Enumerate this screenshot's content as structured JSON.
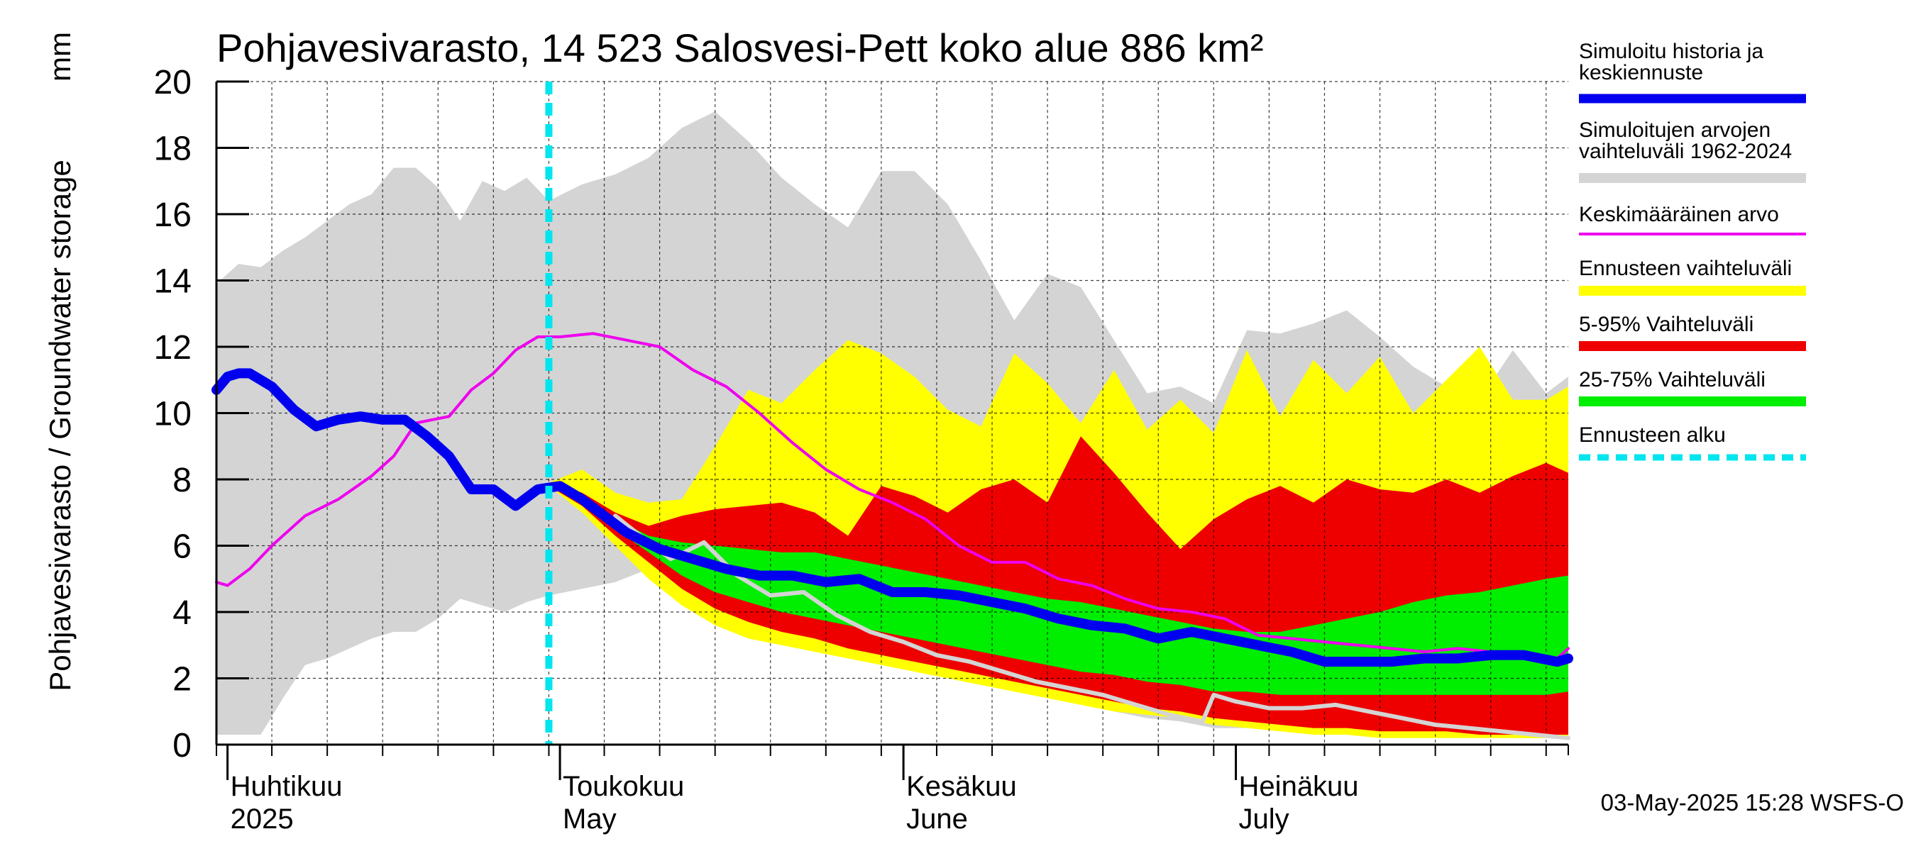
{
  "chart_data": {
    "type": "area",
    "title": "Pohjavesivarasto, 14 523 Salosvesi-Pett koko alue 886 km²",
    "ylabel": "Pohjavesivarasto / Groundwater storage",
    "yunit": "mm",
    "ylim": [
      0,
      20
    ],
    "yticks": [
      "0",
      "2",
      "4",
      "6",
      "8",
      "10",
      "12",
      "14",
      "16",
      "18",
      "20"
    ],
    "xlim": [
      "2025-03-31",
      "2025-07-31"
    ],
    "grid": true,
    "legend_position": "right",
    "month_labels": [
      {
        "date": "2025-04-01",
        "line1": "Huhtikuu",
        "line2": "2025"
      },
      {
        "date": "2025-05-01",
        "line1": "Toukokuu",
        "line2": "May"
      },
      {
        "date": "2025-06-01",
        "line1": "Kesäkuu",
        "line2": "June"
      },
      {
        "date": "2025-07-01",
        "line1": "Heinäkuu",
        "line2": "July"
      }
    ],
    "forecast_start": "2025-04-30",
    "timestamp": "03-May-2025 15:28 WSFS-O",
    "legend": [
      {
        "label": "Simuloitu historia ja keskiennuste",
        "color": "#0000ee",
        "style": "thick"
      },
      {
        "label": "Simuloitujen arvojen vaihteluväli 1962-2024",
        "color": "#d4d4d4",
        "style": "band"
      },
      {
        "label": "Keskimääräinen arvo",
        "color": "#ee00ee",
        "style": "thin"
      },
      {
        "label": "Ennusteen vaihteluväli",
        "color": "#ffff00",
        "style": "band"
      },
      {
        "label": "5-95% Vaihteluväli",
        "color": "#ee0000",
        "style": "band"
      },
      {
        "label": "25-75% Vaihteluväli",
        "color": "#00ee00",
        "style": "band"
      },
      {
        "label": "Ennusteen alku",
        "color": "#00e5ee",
        "style": "dashed"
      }
    ],
    "bands": {
      "history_range": {
        "color": "#d4d4d4",
        "x": [
          "2025-03-31",
          "2025-04-02",
          "2025-04-04",
          "2025-04-06",
          "2025-04-08",
          "2025-04-10",
          "2025-04-12",
          "2025-04-14",
          "2025-04-16",
          "2025-04-18",
          "2025-04-20",
          "2025-04-22",
          "2025-04-24",
          "2025-04-26",
          "2025-04-28",
          "2025-04-30",
          "2025-05-03",
          "2025-05-06",
          "2025-05-09",
          "2025-05-12",
          "2025-05-15",
          "2025-05-18",
          "2025-05-21",
          "2025-05-24",
          "2025-05-27",
          "2025-05-30",
          "2025-06-02",
          "2025-06-05",
          "2025-06-08",
          "2025-06-11",
          "2025-06-14",
          "2025-06-17",
          "2025-06-20",
          "2025-06-23",
          "2025-06-26",
          "2025-06-29",
          "2025-07-02",
          "2025-07-05",
          "2025-07-08",
          "2025-07-11",
          "2025-07-14",
          "2025-07-17",
          "2025-07-20",
          "2025-07-23",
          "2025-07-26",
          "2025-07-29",
          "2025-07-31"
        ],
        "upper": [
          13.9,
          14.5,
          14.4,
          14.9,
          15.3,
          15.8,
          16.3,
          16.6,
          17.4,
          17.4,
          16.8,
          15.8,
          17.0,
          16.7,
          17.1,
          16.4,
          16.9,
          17.2,
          17.7,
          18.6,
          19.1,
          18.2,
          17.1,
          16.3,
          15.6,
          17.3,
          17.3,
          16.3,
          14.6,
          12.8,
          14.2,
          13.8,
          12.2,
          10.6,
          10.8,
          10.3,
          12.5,
          12.4,
          12.7,
          13.1,
          12.3,
          11.4,
          10.8,
          10.4,
          11.9,
          10.6,
          11.1
        ],
        "lower": [
          0.3,
          0.3,
          0.3,
          1.4,
          2.4,
          2.6,
          2.9,
          3.2,
          3.4,
          3.4,
          3.8,
          4.4,
          4.2,
          4.0,
          4.3,
          4.5,
          4.7,
          4.9,
          5.3,
          5.8,
          5.2,
          4.7,
          4.1,
          3.5,
          3.1,
          2.8,
          2.6,
          2.4,
          2.1,
          1.9,
          1.6,
          1.3,
          1.0,
          0.8,
          0.7,
          0.5,
          0.5,
          0.5,
          0.4,
          0.4,
          0.3,
          0.3,
          0.3,
          0.3,
          0.2,
          0.2,
          0.2
        ]
      },
      "forecast_range": {
        "color": "#ffff00",
        "x": [
          "2025-04-30",
          "2025-05-03",
          "2025-05-06",
          "2025-05-09",
          "2025-05-12",
          "2025-05-15",
          "2025-05-18",
          "2025-05-21",
          "2025-05-24",
          "2025-05-27",
          "2025-05-30",
          "2025-06-02",
          "2025-06-05",
          "2025-06-08",
          "2025-06-11",
          "2025-06-14",
          "2025-06-17",
          "2025-06-20",
          "2025-06-23",
          "2025-06-26",
          "2025-06-29",
          "2025-07-02",
          "2025-07-05",
          "2025-07-08",
          "2025-07-11",
          "2025-07-14",
          "2025-07-17",
          "2025-07-20",
          "2025-07-23",
          "2025-07-26",
          "2025-07-29",
          "2025-07-31"
        ],
        "upper": [
          7.9,
          8.3,
          7.6,
          7.3,
          7.4,
          9.0,
          10.7,
          10.3,
          11.3,
          12.2,
          11.8,
          11.1,
          10.1,
          9.6,
          11.8,
          10.9,
          9.7,
          11.3,
          9.5,
          10.4,
          9.4,
          11.9,
          9.9,
          11.6,
          10.6,
          11.7,
          10.0,
          11.0,
          12.0,
          10.4,
          10.4,
          10.8
        ],
        "lower": [
          7.8,
          7.0,
          6.0,
          5.0,
          4.2,
          3.6,
          3.2,
          3.0,
          2.8,
          2.6,
          2.4,
          2.2,
          2.0,
          1.8,
          1.6,
          1.4,
          1.2,
          1.0,
          0.9,
          0.8,
          0.6,
          0.5,
          0.4,
          0.3,
          0.3,
          0.2,
          0.2,
          0.2,
          0.2,
          0.2,
          0.2,
          0.2
        ]
      },
      "p5_95": {
        "color": "#ee0000",
        "x": [
          "2025-04-30",
          "2025-05-03",
          "2025-05-06",
          "2025-05-09",
          "2025-05-12",
          "2025-05-15",
          "2025-05-18",
          "2025-05-21",
          "2025-05-24",
          "2025-05-27",
          "2025-05-30",
          "2025-06-02",
          "2025-06-05",
          "2025-06-08",
          "2025-06-11",
          "2025-06-14",
          "2025-06-17",
          "2025-06-20",
          "2025-06-23",
          "2025-06-26",
          "2025-06-29",
          "2025-07-02",
          "2025-07-05",
          "2025-07-08",
          "2025-07-11",
          "2025-07-14",
          "2025-07-17",
          "2025-07-20",
          "2025-07-23",
          "2025-07-26",
          "2025-07-29",
          "2025-07-31"
        ],
        "upper": [
          7.9,
          7.6,
          7.0,
          6.6,
          6.9,
          7.1,
          7.2,
          7.3,
          7.0,
          6.3,
          7.8,
          7.5,
          7.0,
          7.7,
          8.0,
          7.3,
          9.3,
          8.2,
          7.0,
          5.9,
          6.8,
          7.4,
          7.8,
          7.3,
          8.0,
          7.7,
          7.6,
          8.0,
          7.6,
          8.1,
          8.5,
          8.2
        ],
        "lower": [
          7.8,
          7.2,
          6.3,
          5.5,
          4.7,
          4.1,
          3.7,
          3.4,
          3.2,
          2.9,
          2.7,
          2.5,
          2.3,
          2.1,
          1.9,
          1.7,
          1.5,
          1.3,
          1.1,
          1.0,
          0.8,
          0.7,
          0.6,
          0.5,
          0.5,
          0.4,
          0.4,
          0.4,
          0.3,
          0.3,
          0.3,
          0.3
        ]
      },
      "p25_75": {
        "color": "#00ee00",
        "x": [
          "2025-04-30",
          "2025-05-03",
          "2025-05-06",
          "2025-05-09",
          "2025-05-12",
          "2025-05-15",
          "2025-05-18",
          "2025-05-21",
          "2025-05-24",
          "2025-05-27",
          "2025-05-30",
          "2025-06-02",
          "2025-06-05",
          "2025-06-08",
          "2025-06-11",
          "2025-06-14",
          "2025-06-17",
          "2025-06-20",
          "2025-06-23",
          "2025-06-26",
          "2025-06-29",
          "2025-07-02",
          "2025-07-05",
          "2025-07-08",
          "2025-07-11",
          "2025-07-14",
          "2025-07-17",
          "2025-07-20",
          "2025-07-23",
          "2025-07-26",
          "2025-07-29",
          "2025-07-31"
        ],
        "upper": [
          7.9,
          7.5,
          6.8,
          6.3,
          6.1,
          6.0,
          5.9,
          5.8,
          5.8,
          5.6,
          5.4,
          5.2,
          5.0,
          4.8,
          4.6,
          4.4,
          4.3,
          4.1,
          3.9,
          3.7,
          3.5,
          3.4,
          3.4,
          3.6,
          3.8,
          4.0,
          4.3,
          4.5,
          4.6,
          4.8,
          5.0,
          5.1
        ],
        "lower": [
          7.8,
          7.3,
          6.5,
          5.8,
          5.1,
          4.6,
          4.3,
          4.0,
          3.8,
          3.6,
          3.4,
          3.2,
          3.0,
          2.8,
          2.6,
          2.4,
          2.2,
          2.1,
          1.9,
          1.8,
          1.6,
          1.6,
          1.5,
          1.5,
          1.5,
          1.5,
          1.5,
          1.5,
          1.5,
          1.5,
          1.5,
          1.6
        ]
      }
    },
    "series": [
      {
        "name": "Simuloitu historia ja keskiennuste",
        "color": "#0000ee",
        "x": [
          "2025-03-31",
          "2025-04-01",
          "2025-04-02",
          "2025-04-03",
          "2025-04-05",
          "2025-04-07",
          "2025-04-09",
          "2025-04-11",
          "2025-04-13",
          "2025-04-15",
          "2025-04-17",
          "2025-04-19",
          "2025-04-21",
          "2025-04-23",
          "2025-04-25",
          "2025-04-27",
          "2025-04-29",
          "2025-05-01",
          "2025-05-03",
          "2025-05-05",
          "2025-05-07",
          "2025-05-10",
          "2025-05-13",
          "2025-05-16",
          "2025-05-19",
          "2025-05-22",
          "2025-05-25",
          "2025-05-28",
          "2025-05-31",
          "2025-06-03",
          "2025-06-06",
          "2025-06-09",
          "2025-06-12",
          "2025-06-15",
          "2025-06-18",
          "2025-06-21",
          "2025-06-24",
          "2025-06-27",
          "2025-06-30",
          "2025-07-03",
          "2025-07-06",
          "2025-07-09",
          "2025-07-12",
          "2025-07-15",
          "2025-07-18",
          "2025-07-21",
          "2025-07-24",
          "2025-07-27",
          "2025-07-30",
          "2025-07-31"
        ],
        "y": [
          10.7,
          11.1,
          11.2,
          11.2,
          10.8,
          10.1,
          9.6,
          9.8,
          9.9,
          9.8,
          9.8,
          9.3,
          8.7,
          7.7,
          7.7,
          7.2,
          7.7,
          7.8,
          7.4,
          6.9,
          6.4,
          5.9,
          5.6,
          5.3,
          5.1,
          5.1,
          4.9,
          5.0,
          4.6,
          4.6,
          4.5,
          4.3,
          4.1,
          3.8,
          3.6,
          3.5,
          3.2,
          3.4,
          3.2,
          3.0,
          2.8,
          2.5,
          2.5,
          2.5,
          2.6,
          2.6,
          2.7,
          2.7,
          2.5,
          2.6
        ]
      },
      {
        "name": "Keskimääräinen arvo",
        "color": "#ee00ee",
        "x": [
          "2025-03-31",
          "2025-04-01",
          "2025-04-03",
          "2025-04-05",
          "2025-04-08",
          "2025-04-11",
          "2025-04-14",
          "2025-04-16",
          "2025-04-18",
          "2025-04-21",
          "2025-04-23",
          "2025-04-25",
          "2025-04-27",
          "2025-04-29",
          "2025-05-01",
          "2025-05-04",
          "2025-05-07",
          "2025-05-10",
          "2025-05-13",
          "2025-05-16",
          "2025-05-19",
          "2025-05-22",
          "2025-05-25",
          "2025-05-28",
          "2025-05-31",
          "2025-06-03",
          "2025-06-06",
          "2025-06-09",
          "2025-06-12",
          "2025-06-15",
          "2025-06-18",
          "2025-06-21",
          "2025-06-24",
          "2025-06-27",
          "2025-06-30",
          "2025-07-03",
          "2025-07-06",
          "2025-07-09",
          "2025-07-12",
          "2025-07-15",
          "2025-07-18",
          "2025-07-21",
          "2025-07-24",
          "2025-07-27",
          "2025-07-30",
          "2025-07-31"
        ],
        "y": [
          4.9,
          4.8,
          5.3,
          6.0,
          6.9,
          7.4,
          8.1,
          8.7,
          9.7,
          9.9,
          10.7,
          11.2,
          11.9,
          12.3,
          12.3,
          12.4,
          12.2,
          12.0,
          11.3,
          10.8,
          10.0,
          9.1,
          8.3,
          7.7,
          7.3,
          6.8,
          6.0,
          5.5,
          5.5,
          5.0,
          4.8,
          4.4,
          4.1,
          4.0,
          3.8,
          3.3,
          3.2,
          3.1,
          3.0,
          2.9,
          2.8,
          2.9,
          2.8,
          2.7,
          2.6,
          2.9
        ]
      },
      {
        "name": "",
        "color": "#d4d4d4",
        "x": [
          "2025-05-06",
          "2025-05-09",
          "2025-05-11",
          "2025-05-14",
          "2025-05-17",
          "2025-05-20",
          "2025-05-23",
          "2025-05-26",
          "2025-05-29",
          "2025-06-01",
          "2025-06-04",
          "2025-06-07",
          "2025-06-10",
          "2025-06-13",
          "2025-06-16",
          "2025-06-19",
          "2025-06-22",
          "2025-06-25",
          "2025-06-28",
          "2025-06-29",
          "2025-07-01",
          "2025-07-04",
          "2025-07-07",
          "2025-07-10",
          "2025-07-13",
          "2025-07-16",
          "2025-07-19",
          "2025-07-22",
          "2025-07-25",
          "2025-07-28",
          "2025-07-31"
        ],
        "y": [
          6.9,
          6.1,
          5.6,
          6.1,
          5.1,
          4.5,
          4.6,
          3.9,
          3.4,
          3.1,
          2.7,
          2.5,
          2.2,
          1.9,
          1.7,
          1.5,
          1.2,
          0.9,
          0.7,
          1.5,
          1.3,
          1.1,
          1.1,
          1.2,
          1.0,
          0.8,
          0.6,
          0.5,
          0.4,
          0.3,
          0.2
        ]
      }
    ]
  }
}
